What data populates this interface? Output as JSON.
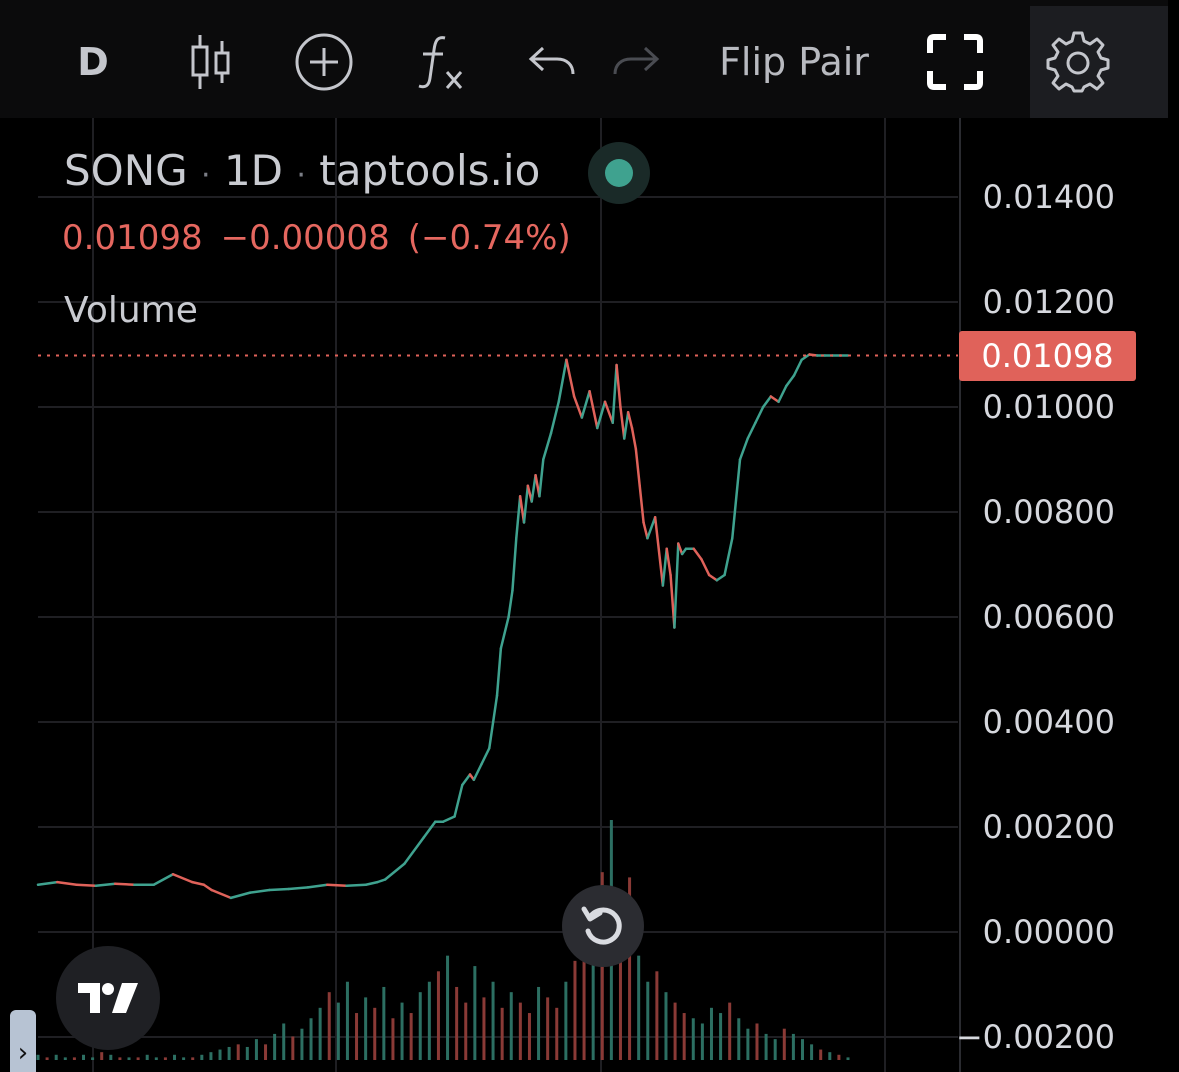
{
  "toolbar": {
    "interval_label": "D",
    "flip_pair_label": "Flip Pair",
    "icons": [
      "candles-icon",
      "add-indicator-icon",
      "fx-icon",
      "undo-icon",
      "redo-icon",
      "fullscreen-icon",
      "gear-icon"
    ]
  },
  "legend": {
    "symbol": "SONG",
    "interval": "1D",
    "source": "taptools.io",
    "separator": "·",
    "last_price": "0.01098",
    "change": "−0.00008",
    "change_pct": "(−0.74%)",
    "volume_label": "Volume"
  },
  "colors": {
    "up": "#3fa28f",
    "down": "#e0625a",
    "background": "#000000",
    "grid": "#1f1f23"
  },
  "price_badge": "0.01098",
  "chart_data": {
    "type": "line",
    "title": "SONG · 1D · taptools.io",
    "xlabel": "",
    "ylabel": "",
    "ylim": [
      -0.0022,
      0.0152
    ],
    "ticks_y": [
      "0.01400",
      "0.01200",
      "0.01000",
      "0.00800",
      "0.00600",
      "0.00400",
      "0.00200",
      "0.00000",
      "-0.00200"
    ],
    "tick_values": [
      0.014,
      0.012,
      0.01,
      0.008,
      0.006,
      0.004,
      0.002,
      0.0,
      -0.002
    ],
    "last_price": 0.01098,
    "series": [
      {
        "x": [
          0,
          5,
          10,
          15,
          20,
          25,
          30,
          35,
          40,
          43,
          45,
          50,
          55,
          60,
          65,
          70,
          75,
          80,
          85,
          88,
          90,
          95,
          100,
          103,
          105,
          108,
          110,
          112,
          113,
          115,
          117,
          119,
          120,
          122,
          123,
          124,
          125,
          126,
          127,
          128,
          129,
          130,
          131,
          133,
          135,
          137,
          139,
          141,
          143,
          145,
          147,
          149,
          150,
          151,
          152,
          153,
          154,
          155,
          156,
          157,
          158,
          160,
          162,
          163,
          164,
          165,
          166,
          167,
          168,
          170,
          172,
          174,
          176,
          178,
          180,
          182,
          184,
          186,
          188,
          190,
          192,
          194,
          196,
          198,
          200,
          202,
          204,
          206,
          208,
          210
        ],
        "values": [
          0.0009,
          0.00095,
          0.0009,
          0.00088,
          0.00092,
          0.0009,
          0.0009,
          0.0011,
          0.00095,
          0.0009,
          0.0008,
          0.00065,
          0.00075,
          0.0008,
          0.00082,
          0.00085,
          0.0009,
          0.00088,
          0.0009,
          0.00095,
          0.001,
          0.0013,
          0.0018,
          0.0021,
          0.0021,
          0.0022,
          0.0028,
          0.003,
          0.0029,
          0.0032,
          0.0035,
          0.0045,
          0.0054,
          0.006,
          0.0065,
          0.0075,
          0.0083,
          0.0078,
          0.0085,
          0.0082,
          0.0087,
          0.0083,
          0.009,
          0.0095,
          0.0101,
          0.0109,
          0.0102,
          0.0098,
          0.0103,
          0.0096,
          0.0101,
          0.0097,
          0.0108,
          0.01,
          0.0094,
          0.0099,
          0.0096,
          0.0092,
          0.0085,
          0.0078,
          0.0075,
          0.0079,
          0.0066,
          0.0073,
          0.0068,
          0.0058,
          0.0074,
          0.0072,
          0.0073,
          0.0073,
          0.0071,
          0.0068,
          0.0067,
          0.0068,
          0.0075,
          0.009,
          0.0094,
          0.0097,
          0.01,
          0.0102,
          0.0101,
          0.0104,
          0.0106,
          0.0109,
          0.011,
          0.01098,
          0.01098,
          0.01098,
          0.01098,
          0.01098
        ]
      }
    ],
    "volume": [
      2,
      1,
      2,
      1,
      1,
      2,
      1,
      3,
      2,
      1,
      1,
      1,
      2,
      1,
      1,
      2,
      1,
      1,
      2,
      3,
      4,
      5,
      6,
      5,
      8,
      6,
      10,
      14,
      9,
      12,
      16,
      20,
      26,
      22,
      30,
      18,
      24,
      20,
      28,
      16,
      22,
      18,
      26,
      30,
      34,
      40,
      28,
      22,
      36,
      24,
      30,
      20,
      26,
      22,
      18,
      28,
      24,
      20,
      30,
      38,
      44,
      60,
      72,
      92,
      50,
      70,
      40,
      30,
      34,
      26,
      22,
      18,
      16,
      14,
      20,
      18,
      22,
      16,
      12,
      14,
      10,
      8,
      12,
      10,
      8,
      6,
      4,
      3,
      2,
      1
    ],
    "volume_up": [
      true,
      false,
      true,
      true,
      false,
      true,
      true,
      false,
      true,
      false,
      true,
      false,
      true,
      true,
      false,
      true,
      true,
      false,
      true,
      true,
      true,
      true,
      false,
      true,
      true,
      false,
      true,
      true,
      false,
      true,
      true,
      true,
      false,
      true,
      true,
      false,
      true,
      false,
      true,
      false,
      true,
      false,
      true,
      true,
      false,
      true,
      false,
      false,
      true,
      false,
      true,
      false,
      true,
      false,
      false,
      true,
      false,
      false,
      true,
      false,
      false,
      true,
      false,
      true,
      false,
      false,
      true,
      true,
      false,
      true,
      false,
      false,
      true,
      true,
      true,
      true,
      false,
      true,
      true,
      false,
      true,
      true,
      false,
      true,
      true,
      true,
      false,
      true,
      false,
      true
    ]
  }
}
